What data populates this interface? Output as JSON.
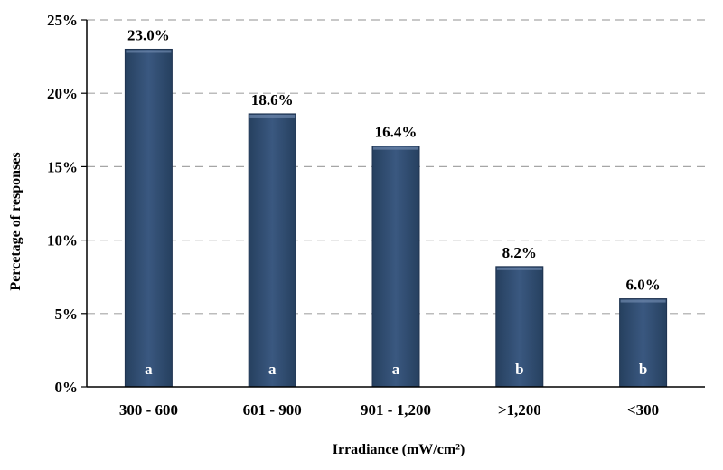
{
  "chart_data": {
    "type": "bar",
    "categories": [
      "300 - 600",
      "601 - 900",
      "901 - 1,200",
      ">1,200",
      "<300"
    ],
    "values": [
      23.0,
      18.6,
      16.4,
      8.2,
      6.0
    ],
    "value_labels": [
      "23.0%",
      "18.6%",
      "16.4%",
      "8.2%",
      "6.0%"
    ],
    "group_letters": [
      "a",
      "a",
      "a",
      "b",
      "b"
    ],
    "title": "",
    "xlabel": "Irradiance (mW/cm²)",
    "ylabel": "Percetage of responses",
    "ylim": [
      0,
      25
    ],
    "yticks": [
      0,
      5,
      10,
      15,
      20,
      25
    ],
    "ytick_labels": [
      "0%",
      "5%",
      "10%",
      "15%",
      "20%",
      "25%"
    ],
    "grid": "horizontal dashed",
    "legend": "none",
    "colors": {
      "bar": "#2f4a6e",
      "bar_edge": "#1f3350",
      "grid": "#a6a6a6",
      "axis": "#000000",
      "text": "#000000",
      "letter": "#ffffff"
    }
  }
}
